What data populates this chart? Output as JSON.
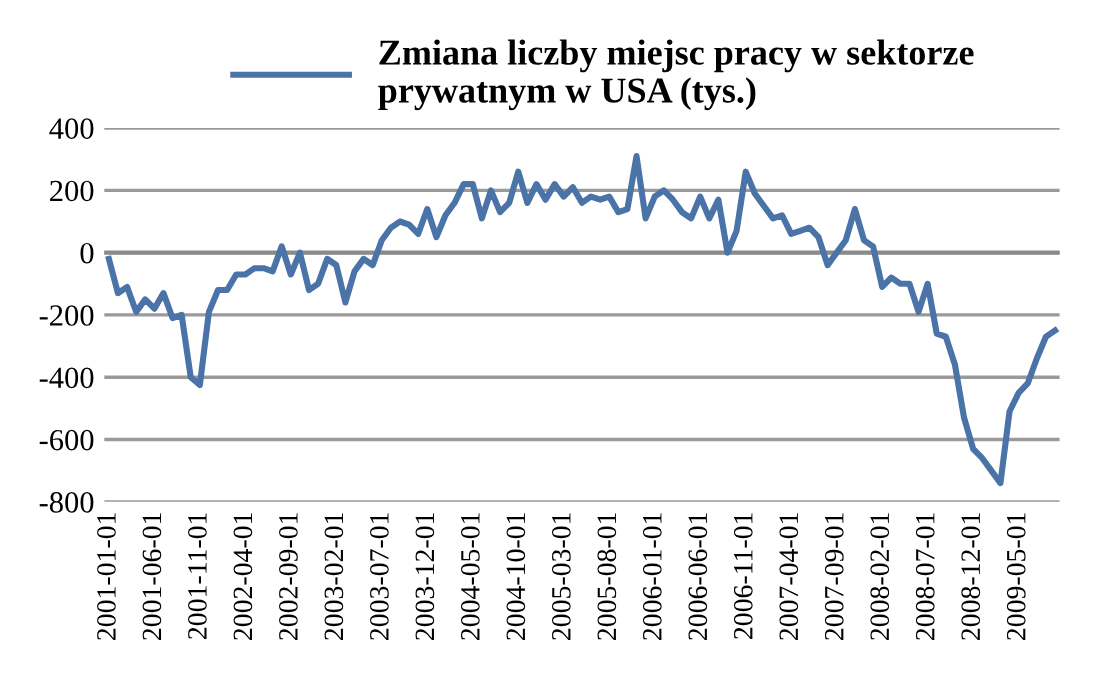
{
  "chart_data": {
    "type": "line",
    "legend": "top",
    "categories": [
      "2001-01-01",
      null,
      null,
      null,
      null,
      "2001-06-01",
      null,
      null,
      null,
      null,
      "2001-11-01",
      null,
      null,
      null,
      null,
      "2002-04-01",
      null,
      null,
      null,
      null,
      "2002-09-01",
      null,
      null,
      null,
      null,
      "2003-02-01",
      null,
      null,
      null,
      null,
      "2003-07-01",
      null,
      null,
      null,
      null,
      "2003-12-01",
      null,
      null,
      null,
      null,
      "2004-05-01",
      null,
      null,
      null,
      null,
      "2004-10-01",
      null,
      null,
      null,
      null,
      "2005-03-01",
      null,
      null,
      null,
      null,
      "2005-08-01",
      null,
      null,
      null,
      null,
      "2006-01-01",
      null,
      null,
      null,
      null,
      "2006-06-01",
      null,
      null,
      null,
      null,
      "2006-11-01",
      null,
      null,
      null,
      null,
      "2007-04-01",
      null,
      null,
      null,
      null,
      "2007-09-01",
      null,
      null,
      null,
      null,
      "2008-02-01",
      null,
      null,
      null,
      null,
      "2008-07-01",
      null,
      null,
      null,
      null,
      "2008-12-01",
      null,
      null,
      null,
      null,
      "2009-05-01",
      null,
      null,
      null,
      null
    ],
    "series": [
      {
        "name": "Zmiana liczby miejsc pracy w sektorze prywatnym w USA (tys.)",
        "color": "#4a73a8",
        "values": [
          -20,
          -130,
          -110,
          -190,
          -150,
          -180,
          -130,
          -210,
          -200,
          -400,
          -425,
          -190,
          -120,
          -120,
          -70,
          -70,
          -50,
          -50,
          -60,
          20,
          -70,
          0,
          -120,
          -100,
          -20,
          -40,
          -160,
          -60,
          -20,
          -40,
          40,
          80,
          100,
          90,
          60,
          140,
          50,
          120,
          160,
          220,
          220,
          110,
          200,
          130,
          160,
          260,
          160,
          220,
          170,
          220,
          180,
          210,
          160,
          180,
          170,
          180,
          130,
          140,
          310,
          110,
          180,
          200,
          170,
          130,
          110,
          180,
          110,
          170,
          0,
          70,
          260,
          190,
          150,
          110,
          120,
          60,
          70,
          80,
          50,
          -40,
          0,
          40,
          140,
          40,
          20,
          -110,
          -80,
          -100,
          -100,
          -190,
          -100,
          -260,
          -270,
          -360,
          -530,
          -630,
          -660,
          -700,
          -740,
          -510,
          -450,
          -420,
          -340,
          -270,
          -250
        ]
      }
    ],
    "ylim": [
      -800,
      400
    ],
    "yticks": [
      -800,
      -600,
      -400,
      -200,
      0,
      200,
      400
    ],
    "grid": "y",
    "marker": "none",
    "line_style": "solid"
  }
}
